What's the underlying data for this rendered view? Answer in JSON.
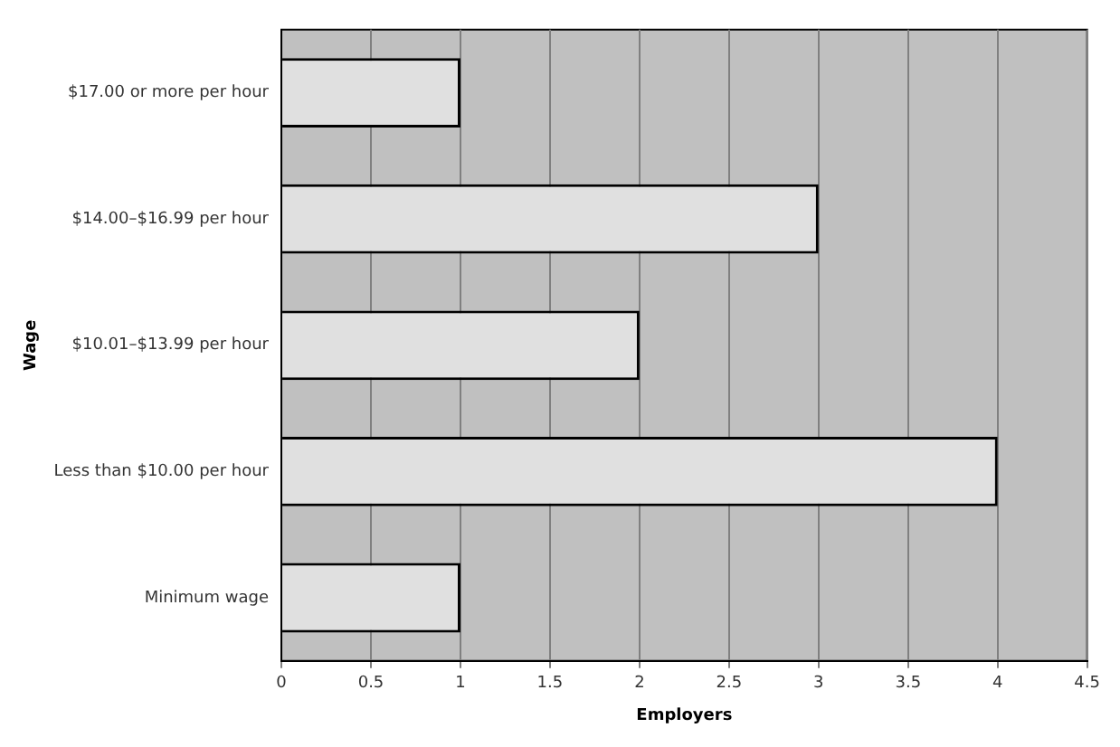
{
  "chart_data": {
    "type": "bar",
    "orientation": "horizontal",
    "xlabel": "Employers",
    "ylabel": "Wage",
    "categories": [
      "$17.00 or more per hour",
      "$14.00–$16.99 per hour",
      "$10.01–$13.99 per hour",
      "Less than $10.00 per hour",
      "Minimum wage"
    ],
    "values": [
      1,
      3,
      2,
      4,
      1
    ],
    "color": "#e0e0e0",
    "xlim": [
      0,
      4.5
    ],
    "xticks": [
      0,
      0.5,
      1,
      1.5,
      2,
      2.5,
      3,
      3.5,
      4,
      4.5
    ],
    "grid": "x",
    "legend": false
  }
}
